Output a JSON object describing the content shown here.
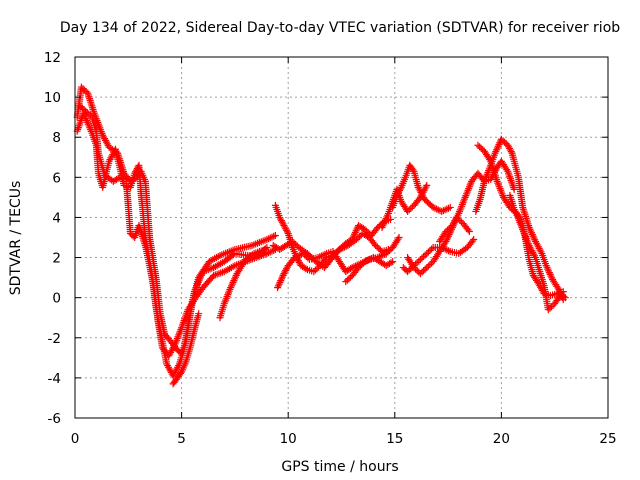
{
  "chart_data": {
    "type": "scatter",
    "title": "Day 134 of 2022, Sidereal Day-to-day VTEC variation (SDTVAR) for receiver riob",
    "xlabel": "GPS time / hours",
    "ylabel": "SDTVAR / TECUs",
    "xlim": [
      0,
      25
    ],
    "ylim": [
      -6,
      12
    ],
    "xticks": [
      0,
      5,
      10,
      15,
      20,
      25
    ],
    "yticks": [
      -6,
      -4,
      -2,
      0,
      2,
      4,
      6,
      8,
      10,
      12
    ],
    "grid": true,
    "marker": "+",
    "series": [
      {
        "name": "SDTVAR",
        "color": "#ff0000",
        "tracks": [
          [
            [
              0.1,
              9.0
            ],
            [
              0.3,
              10.5
            ],
            [
              0.6,
              10.2
            ],
            [
              0.9,
              9.2
            ],
            [
              1.3,
              8.1
            ],
            [
              1.6,
              7.5
            ],
            [
              2.0,
              7.2
            ],
            [
              2.3,
              6.2
            ],
            [
              2.6,
              5.8
            ],
            [
              2.9,
              6.0
            ],
            [
              3.1,
              6.3
            ],
            [
              3.3,
              5.8
            ],
            [
              3.5,
              3.0
            ],
            [
              3.8,
              1.0
            ],
            [
              4.0,
              -0.8
            ],
            [
              4.2,
              -1.8
            ],
            [
              4.5,
              -2.2
            ],
            [
              4.8,
              -2.6
            ],
            [
              5.0,
              -2.8
            ],
            [
              5.2,
              -2.2
            ],
            [
              5.5,
              -0.2
            ],
            [
              5.8,
              1.0
            ],
            [
              6.3,
              1.8
            ],
            [
              6.8,
              2.1
            ],
            [
              7.5,
              2.4
            ],
            [
              8.3,
              2.6
            ],
            [
              9.0,
              2.9
            ],
            [
              9.4,
              3.1
            ]
          ],
          [
            [
              0.1,
              8.3
            ],
            [
              0.4,
              9.2
            ],
            [
              0.8,
              8.2
            ],
            [
              1.0,
              7.6
            ],
            [
              1.1,
              6.2
            ],
            [
              1.3,
              5.5
            ],
            [
              1.6,
              6.8
            ],
            [
              1.9,
              7.4
            ],
            [
              2.1,
              6.5
            ],
            [
              2.3,
              5.6
            ],
            [
              2.6,
              5.5
            ],
            [
              2.8,
              6.2
            ],
            [
              3.0,
              6.6
            ],
            [
              3.1,
              5.2
            ],
            [
              3.3,
              3.0
            ],
            [
              3.6,
              1.2
            ],
            [
              3.8,
              -0.5
            ],
            [
              4.1,
              -2.2
            ],
            [
              4.3,
              -3.3
            ],
            [
              4.6,
              -3.9
            ],
            [
              4.9,
              -3.3
            ],
            [
              5.1,
              -2.6
            ],
            [
              5.3,
              -1.4
            ],
            [
              5.6,
              0.3
            ],
            [
              6.0,
              1.3
            ],
            [
              6.5,
              1.5
            ],
            [
              7.0,
              1.8
            ],
            [
              7.5,
              2.2
            ],
            [
              8.1,
              2.1
            ],
            [
              8.6,
              2.1
            ],
            [
              9.0,
              2.5
            ]
          ],
          [
            [
              0.2,
              9.6
            ],
            [
              0.5,
              9.3
            ],
            [
              0.8,
              9.0
            ],
            [
              1.0,
              8.3
            ],
            [
              1.1,
              7.2
            ],
            [
              1.4,
              6.1
            ],
            [
              1.8,
              5.8
            ],
            [
              2.1,
              6.0
            ],
            [
              2.4,
              5.9
            ],
            [
              2.6,
              3.2
            ],
            [
              2.8,
              3.0
            ],
            [
              3.0,
              3.6
            ],
            [
              3.3,
              2.6
            ],
            [
              3.5,
              1.6
            ],
            [
              3.7,
              0.5
            ],
            [
              3.9,
              -1.2
            ],
            [
              4.1,
              -2.5
            ],
            [
              4.4,
              -2.9
            ],
            [
              4.7,
              -2.3
            ],
            [
              5.0,
              -1.5
            ],
            [
              5.3,
              -0.6
            ],
            [
              5.6,
              -0.1
            ],
            [
              6.0,
              0.5
            ],
            [
              6.5,
              1.1
            ],
            [
              7.0,
              1.3
            ],
            [
              7.5,
              1.6
            ],
            [
              8.0,
              1.8
            ],
            [
              8.5,
              2.0
            ],
            [
              9.0,
              2.2
            ],
            [
              9.4,
              2.4
            ]
          ],
          [
            [
              4.6,
              -4.3
            ],
            [
              4.8,
              -4.0
            ],
            [
              5.0,
              -3.7
            ],
            [
              5.2,
              -3.2
            ],
            [
              5.4,
              -2.5
            ],
            [
              5.6,
              -1.6
            ],
            [
              5.8,
              -0.8
            ]
          ],
          [
            [
              6.8,
              -1.0
            ],
            [
              7.0,
              -0.3
            ],
            [
              7.3,
              0.5
            ],
            [
              7.6,
              1.2
            ],
            [
              8.0,
              1.9
            ],
            [
              8.4,
              2.2
            ],
            [
              8.9,
              2.4
            ]
          ],
          [
            [
              9.4,
              4.6
            ],
            [
              9.6,
              4.0
            ],
            [
              9.8,
              3.6
            ],
            [
              10.0,
              3.2
            ],
            [
              10.2,
              2.5
            ],
            [
              10.4,
              2.0
            ],
            [
              10.6,
              1.6
            ],
            [
              10.9,
              1.4
            ],
            [
              11.2,
              1.3
            ],
            [
              11.5,
              1.6
            ],
            [
              11.8,
              2.0
            ],
            [
              12.1,
              2.1
            ],
            [
              12.4,
              2.4
            ],
            [
              12.8,
              2.6
            ],
            [
              13.2,
              2.9
            ],
            [
              13.5,
              3.2
            ],
            [
              13.8,
              3.0
            ],
            [
              14.1,
              2.6
            ],
            [
              14.4,
              2.3
            ],
            [
              14.7,
              2.4
            ]
          ],
          [
            [
              9.5,
              0.5
            ],
            [
              9.8,
              1.2
            ],
            [
              10.0,
              1.6
            ],
            [
              10.3,
              2.0
            ],
            [
              10.7,
              2.2
            ],
            [
              11.0,
              1.9
            ],
            [
              11.4,
              2.0
            ],
            [
              11.8,
              2.2
            ],
            [
              12.1,
              2.3
            ],
            [
              12.4,
              1.8
            ],
            [
              12.7,
              1.3
            ],
            [
              13.0,
              1.5
            ],
            [
              13.4,
              1.7
            ],
            [
              13.8,
              1.9
            ],
            [
              14.2,
              2.0
            ],
            [
              14.6,
              2.2
            ],
            [
              14.9,
              2.5
            ],
            [
              15.2,
              3.0
            ]
          ],
          [
            [
              9.3,
              2.6
            ],
            [
              9.6,
              2.4
            ],
            [
              9.9,
              2.6
            ],
            [
              10.2,
              2.8
            ],
            [
              10.5,
              2.5
            ],
            [
              10.9,
              2.2
            ],
            [
              11.3,
              1.8
            ],
            [
              11.7,
              1.5
            ],
            [
              12.0,
              1.9
            ],
            [
              12.3,
              2.3
            ],
            [
              12.7,
              2.7
            ],
            [
              13.0,
              2.9
            ],
            [
              13.3,
              3.6
            ],
            [
              13.6,
              3.4
            ],
            [
              13.9,
              3.1
            ],
            [
              14.2,
              3.5
            ],
            [
              14.5,
              3.8
            ],
            [
              14.8,
              3.9
            ]
          ],
          [
            [
              12.7,
              0.8
            ],
            [
              13.0,
              1.1
            ],
            [
              13.3,
              1.5
            ],
            [
              13.6,
              1.8
            ],
            [
              14.0,
              2.0
            ],
            [
              14.3,
              1.8
            ],
            [
              14.6,
              1.6
            ],
            [
              14.9,
              1.8
            ]
          ],
          [
            [
              14.4,
              3.5
            ],
            [
              14.7,
              4.2
            ],
            [
              14.9,
              4.8
            ],
            [
              15.1,
              5.4
            ],
            [
              15.3,
              4.8
            ],
            [
              15.6,
              4.3
            ],
            [
              15.9,
              4.6
            ],
            [
              16.2,
              5.0
            ],
            [
              16.5,
              5.6
            ]
          ],
          [
            [
              14.9,
              4.5
            ],
            [
              15.1,
              5.1
            ],
            [
              15.3,
              5.5
            ],
            [
              15.5,
              6.0
            ],
            [
              15.7,
              6.6
            ],
            [
              15.9,
              6.3
            ],
            [
              16.1,
              5.5
            ],
            [
              16.4,
              4.9
            ],
            [
              16.8,
              4.5
            ],
            [
              17.2,
              4.3
            ],
            [
              17.6,
              4.5
            ]
          ],
          [
            [
              15.4,
              1.5
            ],
            [
              15.6,
              1.3
            ],
            [
              15.9,
              1.6
            ],
            [
              16.2,
              1.9
            ],
            [
              16.5,
              2.2
            ],
            [
              16.8,
              2.5
            ],
            [
              17.2,
              2.5
            ],
            [
              17.6,
              2.3
            ],
            [
              18.0,
              2.2
            ],
            [
              18.4,
              2.5
            ],
            [
              18.7,
              2.9
            ]
          ],
          [
            [
              15.6,
              2.0
            ],
            [
              15.9,
              1.5
            ],
            [
              16.2,
              1.2
            ],
            [
              16.5,
              1.5
            ],
            [
              16.8,
              1.8
            ],
            [
              17.1,
              2.3
            ],
            [
              17.4,
              2.8
            ],
            [
              17.7,
              3.5
            ],
            [
              18.0,
              4.2
            ],
            [
              18.3,
              5.0
            ],
            [
              18.6,
              5.8
            ],
            [
              18.9,
              6.2
            ],
            [
              19.2,
              5.8
            ],
            [
              19.5,
              5.9
            ],
            [
              19.8,
              6.5
            ],
            [
              20.0,
              6.8
            ],
            [
              20.3,
              6.3
            ],
            [
              20.6,
              5.4
            ]
          ],
          [
            [
              17.1,
              2.8
            ],
            [
              17.4,
              3.3
            ],
            [
              17.7,
              3.6
            ],
            [
              17.9,
              4.0
            ],
            [
              18.2,
              3.7
            ],
            [
              18.5,
              3.3
            ]
          ],
          [
            [
              18.8,
              4.3
            ],
            [
              19.0,
              4.9
            ],
            [
              19.2,
              5.8
            ],
            [
              19.5,
              6.6
            ],
            [
              19.7,
              7.2
            ],
            [
              20.0,
              7.9
            ],
            [
              20.3,
              7.6
            ],
            [
              20.5,
              7.2
            ],
            [
              20.8,
              6.0
            ],
            [
              21.0,
              4.5
            ],
            [
              21.3,
              3.5
            ],
            [
              21.6,
              2.8
            ],
            [
              21.9,
              2.2
            ],
            [
              22.1,
              1.6
            ],
            [
              22.4,
              0.9
            ],
            [
              22.7,
              0.4
            ],
            [
              22.9,
              -0.1
            ]
          ],
          [
            [
              18.9,
              7.6
            ],
            [
              19.2,
              7.3
            ],
            [
              19.5,
              6.8
            ],
            [
              19.8,
              5.8
            ],
            [
              20.1,
              5.0
            ],
            [
              20.4,
              4.5
            ],
            [
              20.7,
              4.2
            ],
            [
              21.0,
              3.4
            ],
            [
              21.3,
              2.6
            ],
            [
              21.6,
              2.0
            ],
            [
              21.8,
              1.3
            ],
            [
              22.0,
              0.6
            ],
            [
              22.2,
              -0.6
            ],
            [
              22.5,
              -0.3
            ],
            [
              22.8,
              0.2
            ],
            [
              23.0,
              0.0
            ]
          ],
          [
            [
              20.4,
              5.1
            ],
            [
              20.6,
              4.4
            ],
            [
              20.9,
              3.9
            ],
            [
              21.1,
              3.1
            ],
            [
              21.3,
              1.9
            ],
            [
              21.5,
              1.1
            ],
            [
              21.8,
              0.6
            ],
            [
              22.0,
              0.2
            ],
            [
              22.3,
              0.1
            ],
            [
              22.6,
              0.2
            ],
            [
              22.9,
              0.3
            ]
          ]
        ]
      }
    ]
  }
}
